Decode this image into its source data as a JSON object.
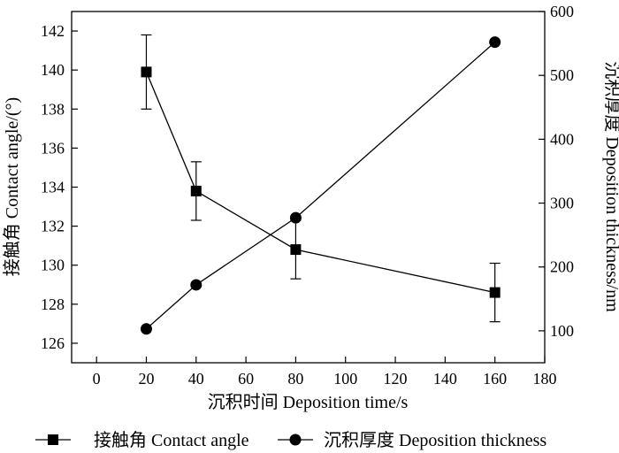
{
  "chart_data": {
    "type": "line",
    "xlabel": "沉积时间 Deposition time/s",
    "ylabel": "接触角 Contact angle/(°)",
    "y2label": "沉积厚度 Deposition thickness/nm",
    "xlim": [
      -10,
      180
    ],
    "xticks": [
      0,
      20,
      40,
      60,
      80,
      100,
      120,
      140,
      160,
      180
    ],
    "ylim": [
      125,
      143
    ],
    "yticks": [
      126,
      128,
      130,
      132,
      134,
      136,
      138,
      140,
      142
    ],
    "y2lim": [
      50,
      600
    ],
    "y2ticks": [
      100,
      200,
      300,
      400,
      500,
      600
    ],
    "grid": false,
    "legend_position": "bottom",
    "series": [
      {
        "name": "接触角 Contact angle",
        "axis": "left",
        "marker": "square",
        "x": [
          20,
          40,
          80,
          160
        ],
        "values": [
          139.9,
          133.8,
          130.8,
          128.6
        ],
        "error": [
          1.9,
          1.5,
          1.5,
          1.5
        ]
      },
      {
        "name": "沉积厚度 Deposition thickness",
        "axis": "right",
        "marker": "circle",
        "x": [
          20,
          40,
          80,
          160
        ],
        "values": [
          103,
          172,
          277,
          552
        ]
      }
    ]
  }
}
